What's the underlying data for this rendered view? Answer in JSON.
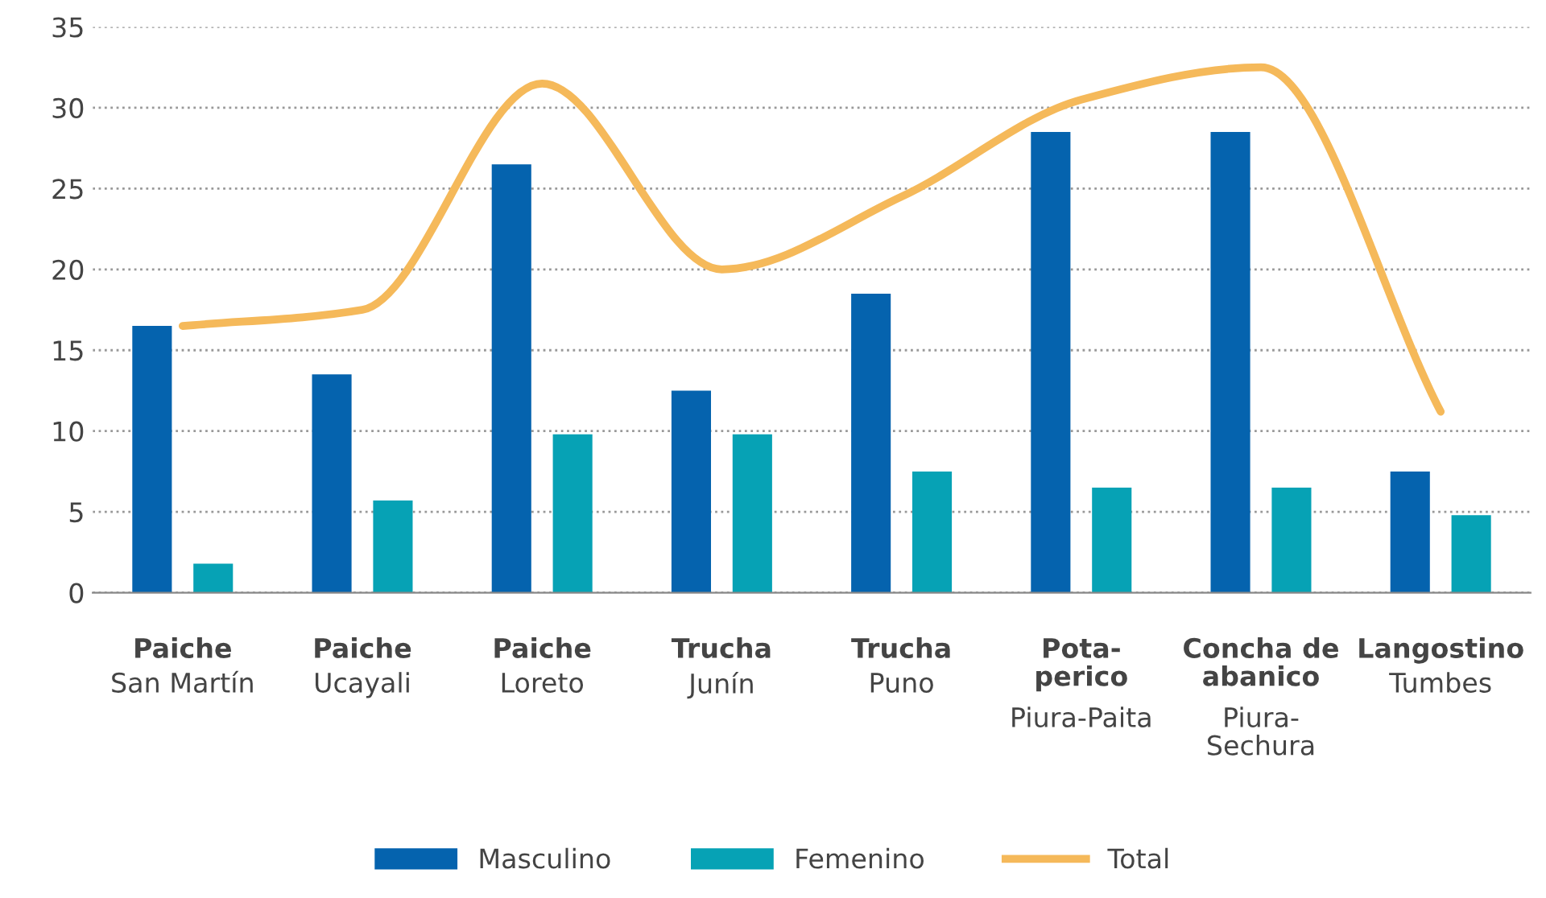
{
  "chart_data": {
    "type": "bar",
    "categories": [
      "Paiche\nSan Martín",
      "Paiche\nUcayali",
      "Paiche\nLoreto",
      "Trucha\nJunín",
      "Trucha\nPuno",
      "Pota-perico\nPiura-Paita",
      "Concha de abanico\nPiura-Sechura",
      "Langostino\nTumbes"
    ],
    "series": [
      {
        "name": "Masculino",
        "color": "#0563ae",
        "values": [
          16.5,
          13.5,
          26.5,
          12.5,
          18.5,
          28.5,
          28.5,
          7.5
        ]
      },
      {
        "name": "Femenino",
        "color": "#06a2b5",
        "values": [
          1.8,
          5.7,
          9.8,
          9.8,
          7.5,
          6.5,
          6.5,
          4.8
        ]
      },
      {
        "name": "Total",
        "type": "line",
        "color": "#f5b95a",
        "values": [
          16.5,
          17.5,
          31.5,
          20,
          24.5,
          30.5,
          32.5,
          11.2
        ]
      }
    ],
    "ylim": [
      0,
      35
    ],
    "yticks": [
      0,
      5,
      10,
      15,
      20,
      25,
      30,
      35
    ],
    "grid": "y",
    "legend": "bottom"
  }
}
